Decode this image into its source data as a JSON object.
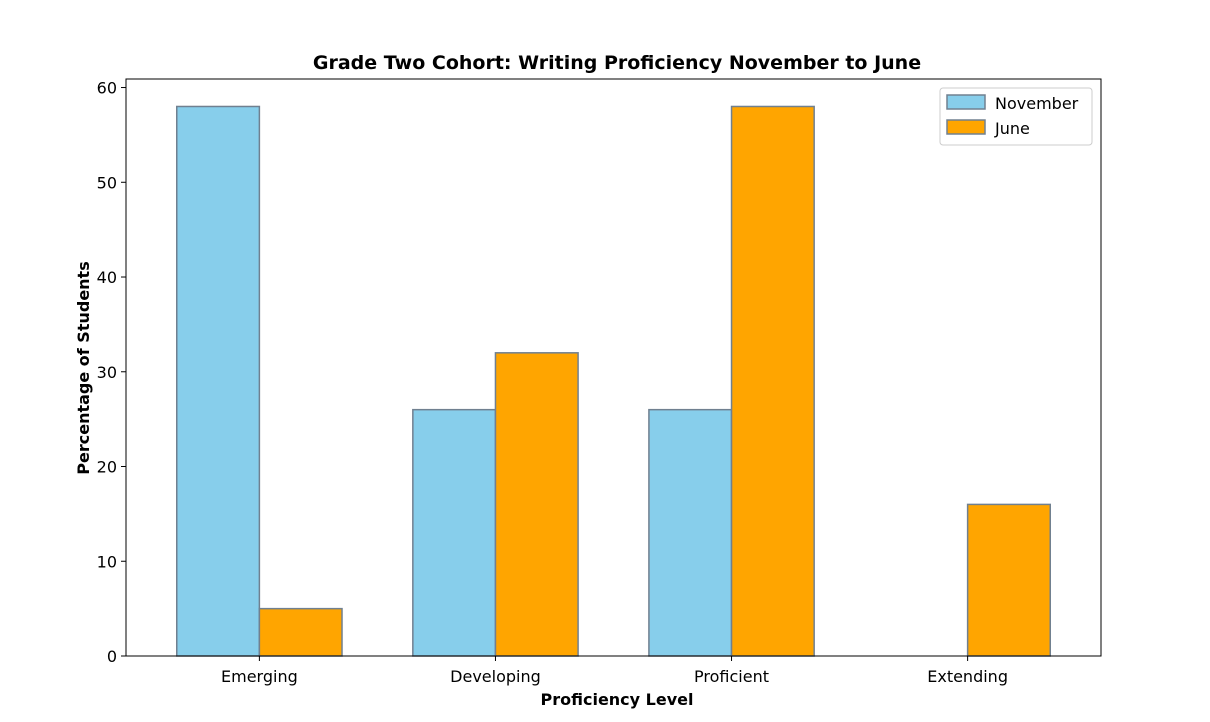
{
  "chart_data": {
    "type": "bar",
    "title": "Grade Two Cohort: Writing Proficiency November to June",
    "xlabel": "Proficiency Level",
    "ylabel": "Percentage of Students",
    "categories": [
      "Emerging",
      "Developing",
      "Proficient",
      "Extending"
    ],
    "series": [
      {
        "name": "November",
        "values": [
          58,
          26,
          26,
          0
        ],
        "color": "#87CEEB"
      },
      {
        "name": "June",
        "values": [
          5,
          32,
          58,
          16
        ],
        "color": "#FFA500"
      }
    ],
    "edge_color": "#708090",
    "ylim": [
      0,
      60.9
    ],
    "yticks": [
      0,
      10,
      20,
      30,
      40,
      50,
      60
    ],
    "grid": false,
    "legend_position": "top-right"
  }
}
